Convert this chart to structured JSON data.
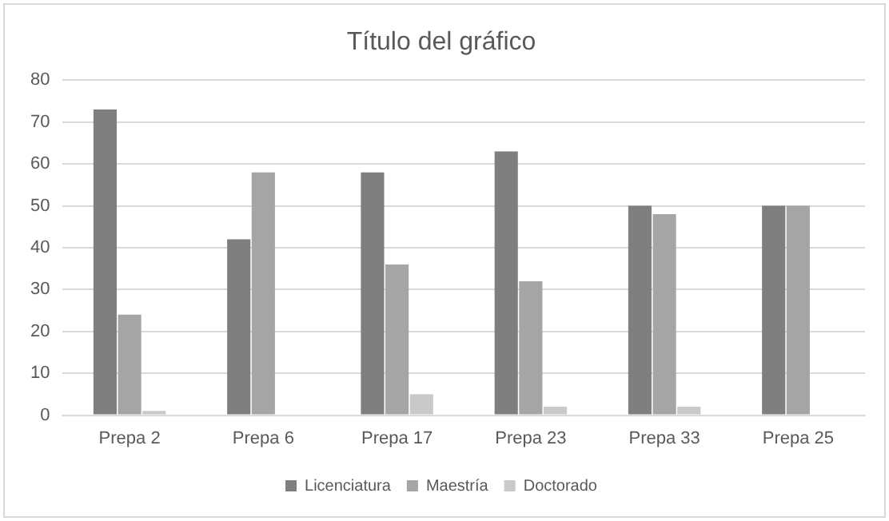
{
  "chart_data": {
    "type": "bar",
    "title": "Título del gráfico",
    "categories": [
      "Prepa 2",
      "Prepa 6",
      "Prepa 17",
      "Prepa 23",
      "Prepa 33",
      "Prepa 25"
    ],
    "series": [
      {
        "name": "Licenciatura",
        "color": "#7f7f7f",
        "values": [
          73,
          42,
          58,
          63,
          50,
          50
        ]
      },
      {
        "name": "Maestría",
        "color": "#a5a5a5",
        "values": [
          24,
          58,
          36,
          32,
          48,
          50
        ]
      },
      {
        "name": "Doctorado",
        "color": "#c9c9c9",
        "values": [
          1,
          0,
          5,
          2,
          2,
          0
        ]
      }
    ],
    "ylim": [
      0,
      80
    ],
    "yticks": [
      0,
      10,
      20,
      30,
      40,
      50,
      60,
      70,
      80
    ],
    "grid": "y",
    "legend": "bottom"
  }
}
